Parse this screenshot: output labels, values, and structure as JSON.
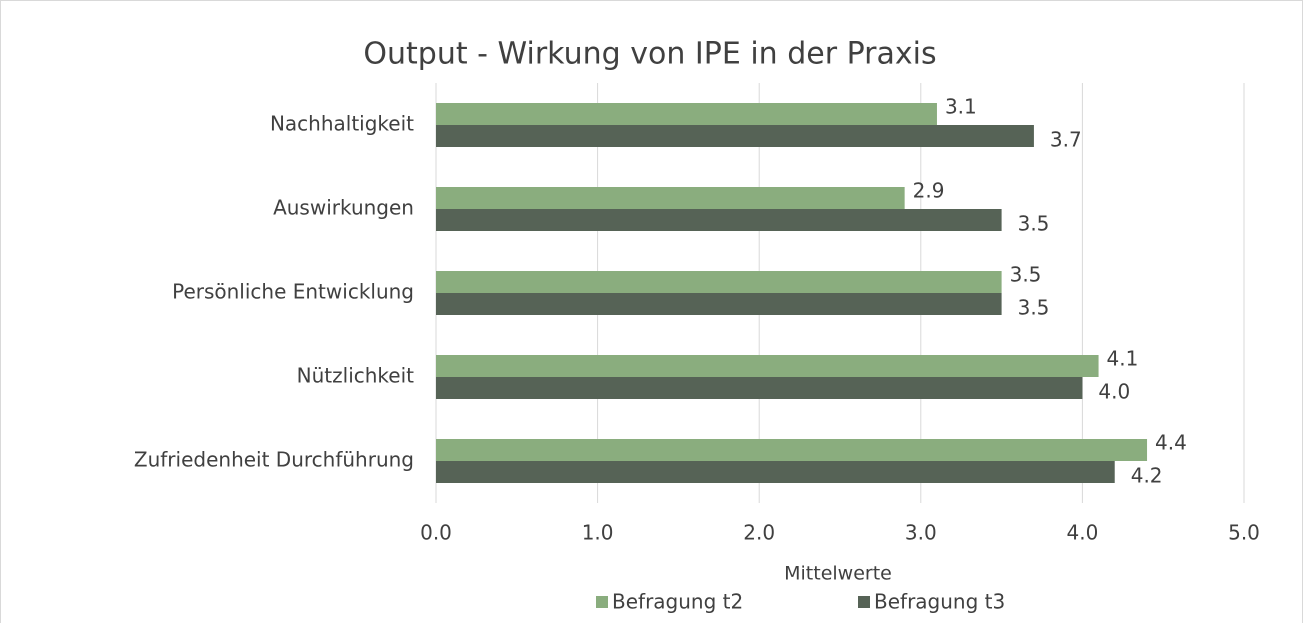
{
  "chart_data": {
    "type": "hbar",
    "title": "Output - Wirkung von IPE in der Praxis",
    "categories": [
      "Nachhaltigkeit",
      "Auswirkungen",
      "Persönliche Entwicklung",
      "Nützlichkeit",
      "Zufriedenheit Durchführung"
    ],
    "series": [
      {
        "name": "Befragung t2",
        "color": "#8aad7e",
        "values": [
          3.1,
          2.9,
          3.5,
          4.1,
          4.4
        ],
        "value_labels": [
          "3.1",
          "2.9",
          "3.5",
          "4.1",
          "4.4"
        ]
      },
      {
        "name": "Befragung t3",
        "color": "#566356",
        "values": [
          3.7,
          3.5,
          3.5,
          4.0,
          4.2
        ],
        "value_labels": [
          "3.7",
          "3.5",
          "3.5",
          "4.0",
          "4.2"
        ]
      }
    ],
    "xlabel": "Mittelwerte",
    "xlim": [
      0,
      5
    ],
    "xticks": [
      {
        "value": 0,
        "label": "0.0"
      },
      {
        "value": 1,
        "label": "1.0"
      },
      {
        "value": 2,
        "label": "2.0"
      },
      {
        "value": 3,
        "label": "3.0"
      },
      {
        "value": 4,
        "label": "4.0"
      },
      {
        "value": 5,
        "label": "5.0"
      }
    ],
    "grid": true,
    "legend": "bottom"
  }
}
